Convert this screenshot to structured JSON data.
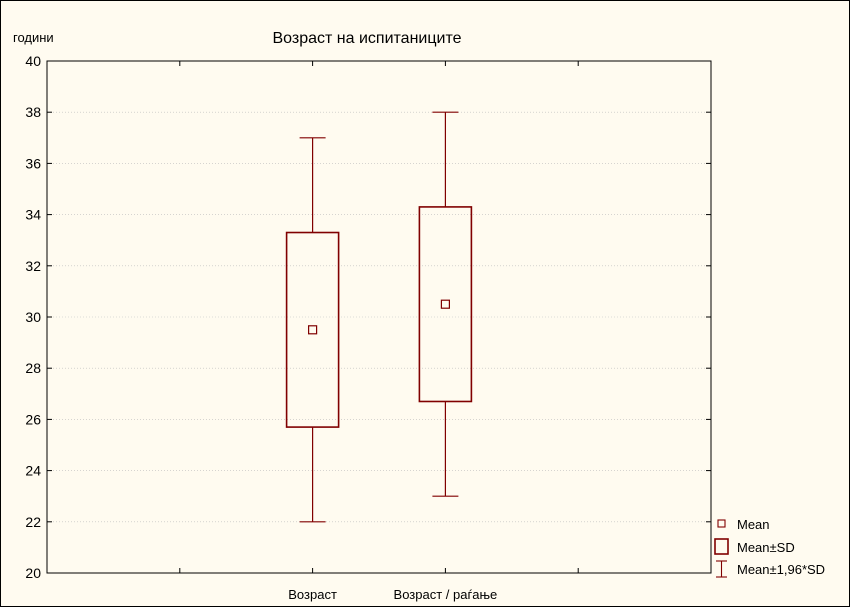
{
  "chart_data": {
    "type": "box",
    "title": "Возраст на испитаниците",
    "ylabel": "години",
    "xlabel": "",
    "ylim": [
      20,
      40
    ],
    "yticks": [
      20,
      22,
      24,
      26,
      28,
      30,
      32,
      34,
      36,
      38,
      40
    ],
    "categories": [
      "Возраст",
      "Возраст / раѓање"
    ],
    "series": [
      {
        "category": "Возраст",
        "mean": 29.5,
        "sd_low": 25.7,
        "sd_high": 33.3,
        "ci_low": 22.0,
        "ci_high": 37.0
      },
      {
        "category": "Возраст / раѓање",
        "mean": 30.5,
        "sd_low": 26.7,
        "sd_high": 34.3,
        "ci_low": 23.0,
        "ci_high": 38.0
      }
    ],
    "legend": {
      "placement": "bottom-right",
      "items": [
        "Mean",
        "Mean±SD",
        "Mean±1,96*SD"
      ]
    },
    "grid": true,
    "color": "#800000"
  }
}
